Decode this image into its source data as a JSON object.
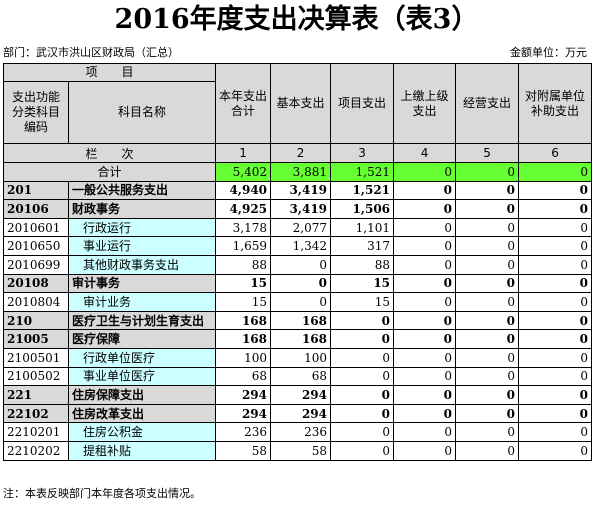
{
  "header": {
    "title": "2016年度支出决算表（表3）",
    "department": "部门：武汉市洪山区财政局（汇总）",
    "unit": "金额单位：万元"
  },
  "table": {
    "item_header": "项　　目",
    "code_header": "支出功能分类科目编码",
    "name_header": "科目名称",
    "columns": [
      "本年支出合计",
      "基本支出",
      "项目支出",
      "上缴上级支出",
      "经营支出",
      "对附属单位补助支出"
    ],
    "seq_label": "栏　　次",
    "seq": [
      "1",
      "2",
      "3",
      "4",
      "5",
      "6"
    ],
    "total": {
      "label": "合计",
      "cells": [
        "5,402",
        "3,881",
        "1,521",
        "0",
        "0",
        "0"
      ]
    },
    "rows": [
      {
        "code": "201",
        "name": "一般公共服务支出",
        "cells": [
          "4,940",
          "3,419",
          "1,521",
          "0",
          "0",
          "0"
        ]
      },
      {
        "code": "20106",
        "name": "财政事务",
        "cells": [
          "4,925",
          "3,419",
          "1,506",
          "0",
          "0",
          "0"
        ]
      },
      {
        "code": "2010601",
        "name": "行政运行",
        "cells": [
          "3,178",
          "2,077",
          "1,101",
          "0",
          "0",
          "0"
        ]
      },
      {
        "code": "2010650",
        "name": "事业运行",
        "cells": [
          "1,659",
          "1,342",
          "317",
          "0",
          "0",
          "0"
        ]
      },
      {
        "code": "2010699",
        "name": "其他财政事务支出",
        "cells": [
          "88",
          "0",
          "88",
          "0",
          "0",
          "0"
        ]
      },
      {
        "code": "20108",
        "name": "审计事务",
        "cells": [
          "15",
          "0",
          "15",
          "0",
          "0",
          "0"
        ]
      },
      {
        "code": "2010804",
        "name": "审计业务",
        "cells": [
          "15",
          "0",
          "15",
          "0",
          "0",
          "0"
        ]
      },
      {
        "code": "210",
        "name": "医疗卫生与计划生育支出",
        "cells": [
          "168",
          "168",
          "0",
          "0",
          "0",
          "0"
        ]
      },
      {
        "code": "21005",
        "name": "医疗保障",
        "cells": [
          "168",
          "168",
          "0",
          "0",
          "0",
          "0"
        ]
      },
      {
        "code": "2100501",
        "name": "行政单位医疗",
        "cells": [
          "100",
          "100",
          "0",
          "0",
          "0",
          "0"
        ]
      },
      {
        "code": "2100502",
        "name": "事业单位医疗",
        "cells": [
          "68",
          "68",
          "0",
          "0",
          "0",
          "0"
        ]
      },
      {
        "code": "221",
        "name": "住房保障支出",
        "cells": [
          "294",
          "294",
          "0",
          "0",
          "0",
          "0"
        ]
      },
      {
        "code": "22102",
        "name": "住房改革支出",
        "cells": [
          "294",
          "294",
          "0",
          "0",
          "0",
          "0"
        ]
      },
      {
        "code": "2210201",
        "name": "住房公积金",
        "cells": [
          "236",
          "236",
          "0",
          "0",
          "0",
          "0"
        ]
      },
      {
        "code": "2210202",
        "name": "提租补贴",
        "cells": [
          "58",
          "58",
          "0",
          "0",
          "0",
          "0"
        ]
      }
    ]
  },
  "footer": {
    "note": "注：本表反映部门本年度各项支出情况。"
  }
}
